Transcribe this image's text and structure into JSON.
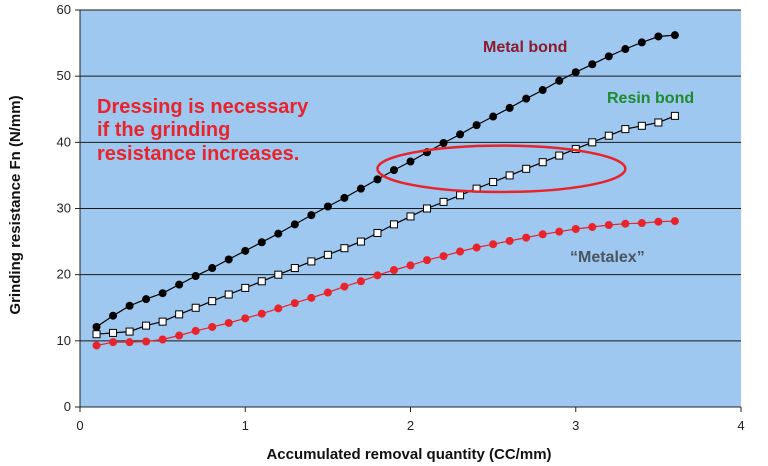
{
  "chart_data": {
    "type": "line",
    "title": "",
    "xlabel": "Accumulated removal quantity (CC/mm)",
    "ylabel": "Grinding resistance Fn (N/mm)",
    "xlim": [
      0,
      4
    ],
    "ylim": [
      0,
      60
    ],
    "x_ticks": [
      "0",
      "1",
      "2",
      "3",
      "4"
    ],
    "y_ticks": [
      "0",
      "10",
      "20",
      "30",
      "40",
      "50",
      "60"
    ],
    "grid": "horizontal",
    "colors": {
      "plot_background": "#9ec8f0",
      "gridline": "#1a1a1a",
      "metal_bond": "#000000",
      "resin_bond_fill": "#ffffff",
      "metalex": "#e8232a",
      "note": "#e8232a",
      "metal_label": "#8b1a2b",
      "resin_label": "#1e8a2e",
      "metalex_label": "#4a5560"
    },
    "series": [
      {
        "key": "metal_bond",
        "marker": "filled-circle",
        "x": [
          0.1,
          0.2,
          0.3,
          0.4,
          0.5,
          0.6,
          0.7,
          0.8,
          0.9,
          1.0,
          1.1,
          1.2,
          1.3,
          1.4,
          1.5,
          1.6,
          1.7,
          1.8,
          1.9,
          2.0,
          2.1,
          2.2,
          2.3,
          2.4,
          2.5,
          2.6,
          2.7,
          2.8,
          2.9,
          3.0,
          3.1,
          3.2,
          3.3,
          3.4,
          3.5,
          3.6
        ],
        "values": [
          12.1,
          13.8,
          15.3,
          16.3,
          17.2,
          18.5,
          19.8,
          21.0,
          22.3,
          23.6,
          24.9,
          26.2,
          27.6,
          29.0,
          30.3,
          31.6,
          33.0,
          34.4,
          35.8,
          37.1,
          38.5,
          39.9,
          41.2,
          42.6,
          43.9,
          45.2,
          46.6,
          47.9,
          49.3,
          50.6,
          51.8,
          53.0,
          54.1,
          55.1,
          56.0,
          56.2
        ]
      },
      {
        "key": "resin_bond",
        "marker": "hollow-square",
        "x": [
          0.1,
          0.2,
          0.3,
          0.4,
          0.5,
          0.6,
          0.7,
          0.8,
          0.9,
          1.0,
          1.1,
          1.2,
          1.3,
          1.4,
          1.5,
          1.6,
          1.7,
          1.8,
          1.9,
          2.0,
          2.1,
          2.2,
          2.3,
          2.4,
          2.5,
          2.6,
          2.7,
          2.8,
          2.9,
          3.0,
          3.1,
          3.2,
          3.3,
          3.4,
          3.5,
          3.6
        ],
        "values": [
          11.0,
          11.2,
          11.4,
          12.3,
          12.9,
          14.0,
          15.0,
          16.0,
          17.0,
          18.0,
          19.0,
          20.0,
          21.0,
          22.0,
          23.0,
          24.0,
          25.0,
          26.3,
          27.6,
          28.8,
          30.0,
          31.0,
          32.0,
          33.0,
          34.0,
          35.0,
          36.0,
          37.0,
          38.0,
          39.0,
          40.0,
          41.0,
          42.0,
          42.5,
          43.0,
          44.0
        ]
      },
      {
        "key": "metalex",
        "marker": "filled-circle",
        "x": [
          0.1,
          0.2,
          0.3,
          0.4,
          0.5,
          0.6,
          0.7,
          0.8,
          0.9,
          1.0,
          1.1,
          1.2,
          1.3,
          1.4,
          1.5,
          1.6,
          1.7,
          1.8,
          1.9,
          2.0,
          2.1,
          2.2,
          2.3,
          2.4,
          2.5,
          2.6,
          2.7,
          2.8,
          2.9,
          3.0,
          3.1,
          3.2,
          3.3,
          3.4,
          3.5,
          3.6
        ],
        "values": [
          9.3,
          9.8,
          9.8,
          9.9,
          10.2,
          10.8,
          11.5,
          12.1,
          12.7,
          13.4,
          14.1,
          14.9,
          15.7,
          16.5,
          17.3,
          18.2,
          19.0,
          19.9,
          20.7,
          21.4,
          22.2,
          22.8,
          23.5,
          24.1,
          24.6,
          25.1,
          25.6,
          26.1,
          26.5,
          26.9,
          27.2,
          27.5,
          27.7,
          27.8,
          28.0,
          28.1
        ]
      }
    ],
    "annotations": {
      "metal_bond_label": "Metal bond",
      "resin_bond_label": "Resin bond",
      "metalex_label": "“Metalex”",
      "note_lines": [
        "Dressing is necessary",
        "if the grinding",
        "resistance increases."
      ],
      "ellipse_center": [
        2.55,
        36.0
      ],
      "ellipse_radius": [
        0.75,
        3.5
      ]
    }
  }
}
